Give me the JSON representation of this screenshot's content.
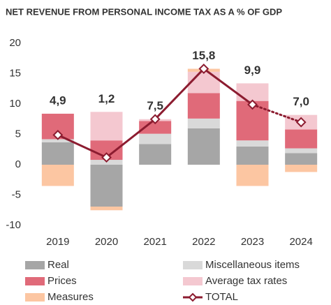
{
  "chart_data": {
    "type": "stacked_bar_line",
    "title": "NET REVENUE FROM PERSONAL INCOME TAX AS A % OF GDP",
    "categories": [
      "2019",
      "2020",
      "2021",
      "2022",
      "2023",
      "2024"
    ],
    "series": [
      {
        "name": "Real",
        "color": "#a6a6a6",
        "values": [
          3.7,
          -6.9,
          3.4,
          6.0,
          3.0,
          1.9
        ]
      },
      {
        "name": "Miscellaneous items",
        "color": "#d9d9d9",
        "values": [
          0.5,
          0.8,
          1.7,
          1.6,
          1.0,
          0.8
        ]
      },
      {
        "name": "Prices",
        "color": "#e06a79",
        "values": [
          4.2,
          3.2,
          2.1,
          4.2,
          6.5,
          3.1
        ]
      },
      {
        "name": "Average tax rates",
        "color": "#f4c8d0",
        "values": [
          0,
          4.7,
          0.3,
          3.5,
          2.9,
          2.4
        ]
      },
      {
        "name": "Measures",
        "color": "#fcc6a2",
        "values": [
          -3.5,
          -0.6,
          0,
          0.5,
          -3.5,
          -1.2
        ]
      }
    ],
    "line": {
      "name": "TOTAL",
      "color": "#8c1c30",
      "values": [
        4.9,
        1.2,
        7.5,
        15.8,
        9.9,
        7.0
      ],
      "value_labels": [
        "4,9",
        "1,2",
        "7,5",
        "15,8",
        "9,9",
        "7,0"
      ],
      "dotted_last_segment": true
    },
    "ylim": [
      -10,
      20
    ],
    "yticks": [
      -10,
      -5,
      0,
      5,
      10,
      15,
      20
    ],
    "grid": false
  }
}
